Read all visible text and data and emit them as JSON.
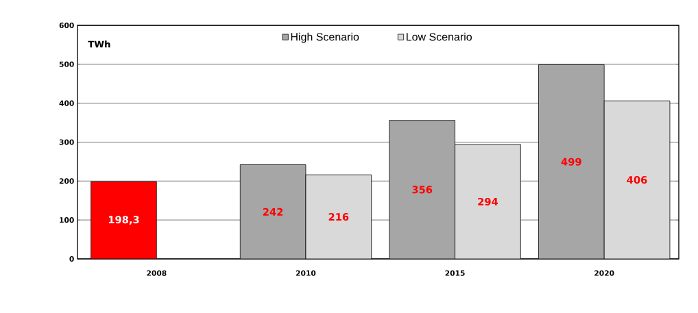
{
  "chart_data": {
    "type": "bar",
    "ylabel": "TWh",
    "categories": [
      "2008",
      "2010",
      "2015",
      "2020"
    ],
    "series": [
      {
        "color": "#ff0000",
        "values": [
          198.3,
          null,
          null,
          null
        ],
        "value_labels": [
          "198,3",
          null,
          null,
          null
        ]
      },
      {
        "name": "High Scenario",
        "color": "#a6a6a6",
        "values": [
          null,
          242,
          356,
          499
        ],
        "value_labels": [
          null,
          "242",
          "356",
          "499"
        ]
      },
      {
        "name": "Low Scenario",
        "color": "#d9d9d9",
        "values": [
          null,
          216,
          294,
          406
        ],
        "value_labels": [
          null,
          "216",
          "294",
          "406"
        ]
      }
    ],
    "ylim": [
      0,
      600
    ],
    "yticks": [
      0,
      100,
      200,
      300,
      400,
      500,
      600
    ],
    "grid": "y",
    "legend": "top"
  }
}
